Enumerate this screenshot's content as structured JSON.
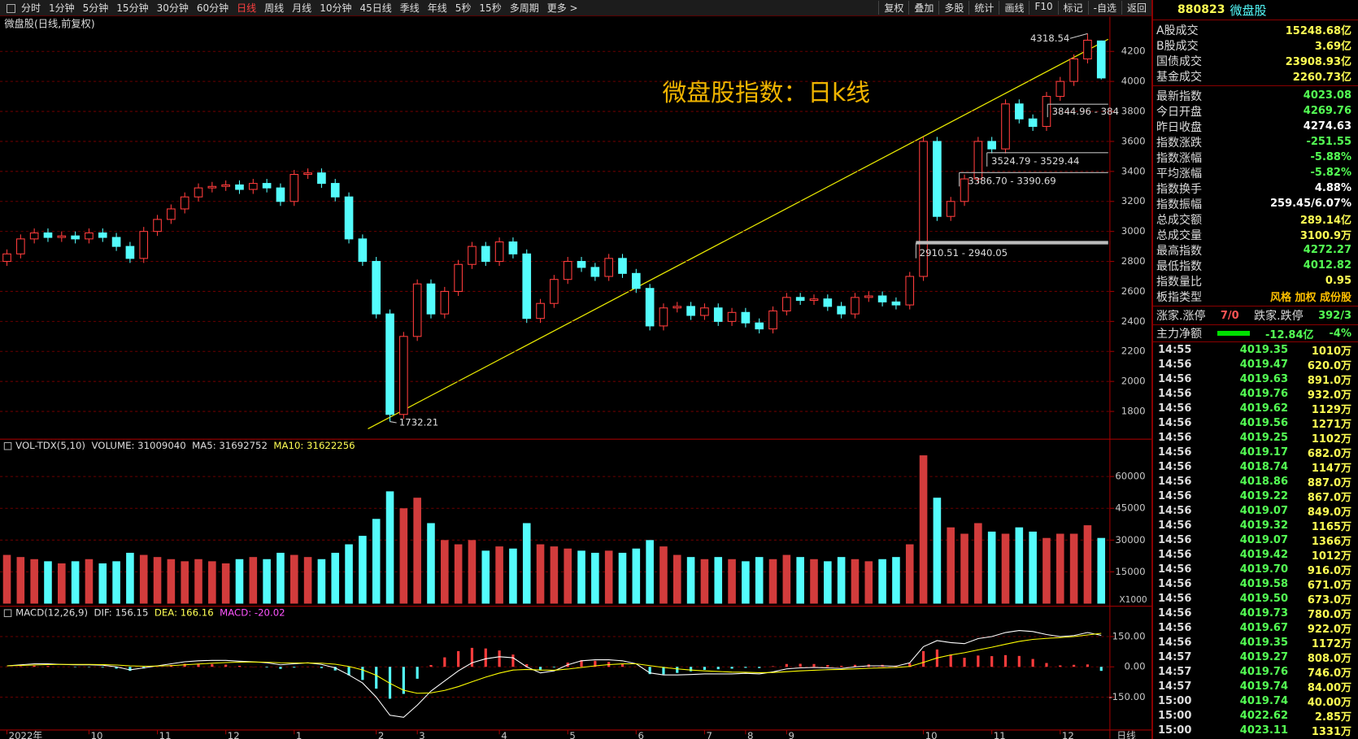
{
  "toolbar": {
    "periods": [
      "分时",
      "1分钟",
      "5分钟",
      "15分钟",
      "30分钟",
      "60分钟",
      "日线",
      "周线",
      "月线",
      "10分钟",
      "45日线",
      "季线",
      "年线",
      "5秒",
      "15秒",
      "多周期",
      "更多 >"
    ],
    "active_period": 6,
    "tools": [
      "复权",
      "叠加",
      "多股",
      "统计",
      "画线",
      "F10",
      "标记",
      "-自选",
      "返回"
    ]
  },
  "chart_data": {
    "type": "candlestick",
    "title": "微盘股(日线,前复权)",
    "annotation": "微盘股指数：日k线",
    "categories": [
      "2022年",
      null,
      null,
      null,
      null,
      null,
      "10",
      null,
      null,
      null,
      null,
      "11",
      null,
      null,
      null,
      null,
      "12",
      null,
      null,
      null,
      null,
      "1",
      null,
      null,
      null,
      null,
      null,
      "2",
      null,
      null,
      "3",
      null,
      null,
      null,
      null,
      null,
      "4",
      null,
      null,
      null,
      null,
      "5",
      null,
      null,
      null,
      null,
      "6",
      null,
      null,
      null,
      null,
      "7",
      null,
      null,
      "8",
      null,
      null,
      "9",
      null,
      null,
      null,
      null,
      null,
      null,
      null,
      null,
      null,
      "10",
      null,
      null,
      null,
      null,
      "11",
      null,
      null,
      null,
      null,
      "12",
      null,
      null,
      null
    ],
    "open": [
      2800,
      2850,
      2950,
      2990,
      2960,
      2970,
      2950,
      2990,
      2960,
      2900,
      2820,
      3000,
      3080,
      3150,
      3230,
      3290,
      3300,
      3310,
      3280,
      3320,
      3290,
      3200,
      3380,
      3390,
      3320,
      3230,
      2950,
      2800,
      2450,
      1780,
      2300,
      2650,
      2450,
      2600,
      2780,
      2900,
      2800,
      2930,
      2850,
      2420,
      2520,
      2680,
      2800,
      2760,
      2700,
      2820,
      2720,
      2620,
      2370,
      2490,
      2500,
      2440,
      2490,
      2400,
      2460,
      2390,
      2350,
      2470,
      2560,
      2540,
      2550,
      2500,
      2450,
      2560,
      2570,
      2530,
      2510,
      2700,
      3600,
      3100,
      3200,
      3350,
      3600,
      3550,
      3850,
      3750,
      3700,
      3900,
      4000,
      4150,
      4269.76
    ],
    "high": [
      2880,
      2980,
      3020,
      3020,
      3000,
      3000,
      3020,
      3020,
      2990,
      2930,
      3030,
      3110,
      3180,
      3260,
      3320,
      3330,
      3340,
      3340,
      3350,
      3350,
      3320,
      3410,
      3420,
      3420,
      3350,
      3260,
      2980,
      2830,
      2480,
      2330,
      2680,
      2680,
      2630,
      2810,
      2930,
      2930,
      2960,
      2960,
      2880,
      2550,
      2710,
      2830,
      2830,
      2790,
      2850,
      2850,
      2750,
      2650,
      2520,
      2530,
      2530,
      2520,
      2520,
      2490,
      2490,
      2420,
      2500,
      2590,
      2590,
      2580,
      2580,
      2530,
      2590,
      2600,
      2600,
      2560,
      2730,
      3630,
      3630,
      3230,
      3380,
      3630,
      3630,
      3880,
      3880,
      3780,
      3930,
      4030,
      4180,
      4318.54,
      4272.27
    ],
    "low": [
      2770,
      2820,
      2920,
      2930,
      2930,
      2920,
      2920,
      2930,
      2870,
      2790,
      2790,
      2970,
      3050,
      3120,
      3200,
      3260,
      3270,
      3250,
      3250,
      3260,
      3170,
      3170,
      3350,
      3290,
      3200,
      2920,
      2770,
      2420,
      1732.21,
      1750,
      2270,
      2420,
      2420,
      2570,
      2750,
      2770,
      2770,
      2820,
      2390,
      2390,
      2490,
      2650,
      2730,
      2670,
      2670,
      2690,
      2590,
      2340,
      2340,
      2460,
      2410,
      2410,
      2370,
      2370,
      2360,
      2320,
      2320,
      2440,
      2510,
      2510,
      2470,
      2420,
      2420,
      2530,
      2500,
      2480,
      2480,
      2670,
      3070,
      3070,
      3170,
      3320,
      3520,
      3520,
      3720,
      3670,
      3670,
      3870,
      3970,
      4120,
      4012.82
    ],
    "close": [
      2850,
      2950,
      2990,
      2960,
      2970,
      2950,
      2990,
      2960,
      2900,
      2820,
      3000,
      3080,
      3150,
      3230,
      3290,
      3300,
      3310,
      3280,
      3320,
      3290,
      3200,
      3380,
      3390,
      3320,
      3230,
      2950,
      2800,
      2450,
      1780,
      2300,
      2650,
      2450,
      2600,
      2780,
      2900,
      2800,
      2930,
      2850,
      2420,
      2520,
      2680,
      2800,
      2760,
      2700,
      2820,
      2720,
      2620,
      2370,
      2490,
      2500,
      2440,
      2490,
      2400,
      2460,
      2390,
      2350,
      2470,
      2560,
      2540,
      2550,
      2500,
      2450,
      2560,
      2570,
      2530,
      2510,
      2700,
      3600,
      3100,
      3200,
      3350,
      3600,
      3550,
      3850,
      3750,
      3700,
      3900,
      4000,
      4150,
      4274.63,
      4023.08
    ],
    "up_color": "#ff3c3c",
    "down_color": "#54fcfc",
    "ylim": [
      1615,
      4425
    ],
    "yticks": [
      1800,
      2000,
      2200,
      2400,
      2600,
      2800,
      3000,
      3200,
      3400,
      3600,
      3800,
      4000,
      4200
    ],
    "grid": true,
    "gap_labels": [
      "2910.51 - 2940.05",
      "3386.70 - 3390.69",
      "3524.79 - 3529.44",
      "3844.96 - 384"
    ],
    "volume": {
      "type": "bar",
      "header": [
        "VOL-TDX(5,10)",
        "VOLUME: 31009040",
        "MA5: 31692752",
        "MA10: 31622256"
      ],
      "values": [
        23000,
        22000,
        21000,
        20000,
        19000,
        20000,
        21000,
        19000,
        20000,
        24000,
        23000,
        22000,
        21000,
        20000,
        21000,
        20000,
        19000,
        21000,
        22000,
        21000,
        24000,
        23000,
        22000,
        21000,
        24000,
        28000,
        32000,
        40000,
        53000,
        45000,
        50000,
        38000,
        30000,
        28000,
        30000,
        25000,
        27000,
        26000,
        38000,
        28000,
        27000,
        26000,
        25000,
        24000,
        25000,
        24000,
        26000,
        30000,
        27000,
        23000,
        22000,
        21000,
        22000,
        21000,
        20000,
        22000,
        21000,
        23000,
        22000,
        21000,
        20000,
        22000,
        21000,
        20000,
        21000,
        22000,
        28000,
        70000,
        50000,
        36000,
        33000,
        38000,
        34000,
        33000,
        36000,
        34000,
        31000,
        33000,
        33000,
        37000,
        31009
      ],
      "ylim": [
        0,
        71500
      ],
      "yticks": [
        15000,
        30000,
        45000,
        60000
      ],
      "unit": "X1000"
    },
    "macd": {
      "type": "bar",
      "header": [
        "MACD(12,26,9)",
        "DIF: 156.15",
        "DEA: 166.16",
        "MACD: -20.02"
      ],
      "values": [
        0,
        3,
        6,
        4,
        0,
        -2,
        -2,
        -3,
        -9,
        -20,
        -8,
        1,
        9,
        15,
        16,
        14,
        11,
        5,
        1,
        -3,
        -10,
        -4,
        1,
        -6,
        -18,
        -42,
        -65,
        -108,
        -158,
        -134,
        -59,
        9,
        47,
        78,
        94,
        91,
        81,
        61,
        13,
        -14,
        -3,
        21,
        33,
        30,
        24,
        15,
        0,
        -36,
        -37,
        -30,
        -22,
        -15,
        -12,
        -9,
        -5,
        -6,
        3,
        14,
        15,
        14,
        9,
        5,
        10,
        12,
        10,
        6,
        18,
        78,
        86,
        61,
        45,
        56,
        53,
        58,
        54,
        39,
        19,
        7,
        10,
        12,
        -20.02
      ],
      "dif": [
        5,
        10,
        15,
        15,
        12,
        10,
        10,
        8,
        0,
        -15,
        -5,
        5,
        15,
        25,
        30,
        32,
        32,
        28,
        25,
        20,
        10,
        15,
        20,
        12,
        -5,
        -40,
        -80,
        -150,
        -240,
        -250,
        -190,
        -120,
        -70,
        -20,
        20,
        40,
        50,
        45,
        0,
        -30,
        -20,
        10,
        30,
        35,
        35,
        30,
        15,
        -30,
        -40,
        -40,
        -38,
        -35,
        -35,
        -35,
        -32,
        -35,
        -25,
        -10,
        -5,
        -3,
        -5,
        -8,
        0,
        5,
        5,
        3,
        20,
        100,
        130,
        120,
        115,
        140,
        150,
        170,
        180,
        175,
        160,
        150,
        155,
        170,
        156.15
      ],
      "dea": [
        5,
        7,
        9,
        11,
        12,
        12,
        12,
        11,
        9,
        5,
        3,
        4,
        6,
        10,
        14,
        18,
        21,
        23,
        24,
        23,
        20,
        19,
        19,
        18,
        13,
        2,
        -15,
        -42,
        -82,
        -116,
        -131,
        -129,
        -117,
        -98,
        -74,
        -51,
        -31,
        -16,
        -13,
        -16,
        -17,
        -11,
        -3,
        5,
        11,
        15,
        15,
        6,
        -3,
        -10,
        -16,
        -20,
        -23,
        -26,
        -27,
        -29,
        -28,
        -24,
        -20,
        -17,
        -14,
        -13,
        -10,
        -7,
        -5,
        -3,
        2,
        22,
        44,
        59,
        70,
        84,
        97,
        112,
        126,
        136,
        141,
        145,
        150,
        158,
        166.16
      ],
      "dif_color": "#ffffff",
      "dea_color": "#ffff00",
      "ylim": [
        -313,
        236
      ],
      "yticks": [
        {
          "value": -150,
          "label": "-150.00"
        },
        {
          "value": 0,
          "label": "0.00"
        },
        {
          "value": 150,
          "label": "150.00"
        }
      ]
    },
    "period_label": "日线"
  },
  "quote": {
    "code": "880823",
    "name": "微盘股",
    "turnover": [
      {
        "label": "A股成交",
        "value": "15248.68亿",
        "color": "#ffff54"
      },
      {
        "label": "B股成交",
        "value": "3.69亿",
        "color": "#ffff54"
      },
      {
        "label": "国债成交",
        "value": "23908.93亿",
        "color": "#ffff54"
      },
      {
        "label": "基金成交",
        "value": "2260.73亿",
        "color": "#ffff54"
      }
    ],
    "stats": [
      {
        "label": "最新指数",
        "value": "4023.08",
        "color": "#54ff54"
      },
      {
        "label": "今日开盘",
        "value": "4269.76",
        "color": "#54ff54"
      },
      {
        "label": "昨日收盘",
        "value": "4274.63",
        "color": "#ffffff"
      },
      {
        "label": "指数涨跌",
        "value": "-251.55",
        "color": "#54ff54"
      },
      {
        "label": "指数涨幅",
        "value": "-5.88%",
        "color": "#54ff54"
      },
      {
        "label": "平均涨幅",
        "value": "-5.82%",
        "color": "#54ff54"
      },
      {
        "label": "指数换手",
        "value": "4.88%",
        "color": "#ffffff"
      },
      {
        "label": "指数振幅",
        "value": "259.45/6.07%",
        "color": "#ffffff"
      },
      {
        "label": "总成交额",
        "value": "289.14亿",
        "color": "#ffff54"
      },
      {
        "label": "总成交量",
        "value": "3100.9万",
        "color": "#ffff54"
      },
      {
        "label": "最高指数",
        "value": "4272.27",
        "color": "#54ff54"
      },
      {
        "label": "最低指数",
        "value": "4012.82",
        "color": "#54ff54"
      },
      {
        "label": "指数量比",
        "value": "0.95",
        "color": "#ffff54"
      },
      {
        "label": "板指类型",
        "value": "风格 加权 成份股",
        "color": "#ffc000"
      }
    ],
    "breadth": {
      "up_label": "涨家.涨停",
      "up": "7/0",
      "down_label": "跌家.跌停",
      "down": "392/3"
    },
    "flow": {
      "label": "主力净额",
      "value": "-12.84亿",
      "pct": "-4%"
    },
    "ticks": [
      [
        "14:55",
        "4019.35",
        "1010万"
      ],
      [
        "14:56",
        "4019.47",
        "620.0万"
      ],
      [
        "14:56",
        "4019.63",
        "891.0万"
      ],
      [
        "14:56",
        "4019.76",
        "932.0万"
      ],
      [
        "14:56",
        "4019.62",
        "1129万"
      ],
      [
        "14:56",
        "4019.56",
        "1271万"
      ],
      [
        "14:56",
        "4019.25",
        "1102万"
      ],
      [
        "14:56",
        "4019.17",
        "682.0万"
      ],
      [
        "14:56",
        "4018.74",
        "1147万"
      ],
      [
        "14:56",
        "4018.86",
        "887.0万"
      ],
      [
        "14:56",
        "4019.22",
        "867.0万"
      ],
      [
        "14:56",
        "4019.07",
        "849.0万"
      ],
      [
        "14:56",
        "4019.32",
        "1165万"
      ],
      [
        "14:56",
        "4019.07",
        "1366万"
      ],
      [
        "14:56",
        "4019.42",
        "1012万"
      ],
      [
        "14:56",
        "4019.70",
        "916.0万"
      ],
      [
        "14:56",
        "4019.58",
        "671.0万"
      ],
      [
        "14:56",
        "4019.50",
        "673.0万"
      ],
      [
        "14:56",
        "4019.73",
        "780.0万"
      ],
      [
        "14:56",
        "4019.67",
        "922.0万"
      ],
      [
        "14:56",
        "4019.35",
        "1172万"
      ],
      [
        "14:57",
        "4019.27",
        "808.0万"
      ],
      [
        "14:57",
        "4019.76",
        "746.0万"
      ],
      [
        "14:57",
        "4019.74",
        "84.00万"
      ],
      [
        "15:00",
        "4019.74",
        "40.00万"
      ],
      [
        "15:00",
        "4022.62",
        "2.85万"
      ],
      [
        "15:00",
        "4023.11",
        "1331万"
      ]
    ]
  }
}
